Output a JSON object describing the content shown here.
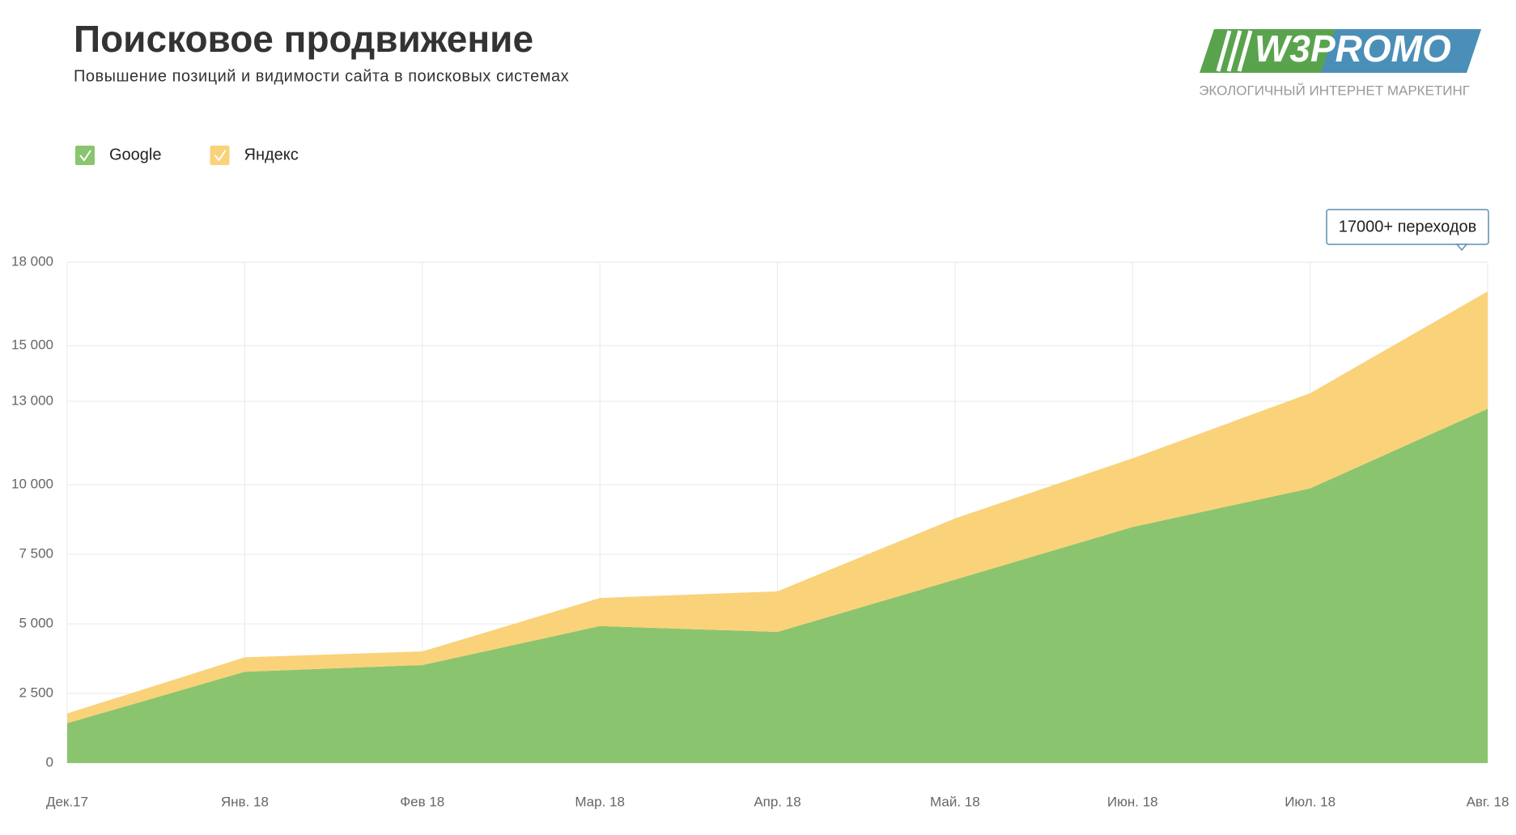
{
  "chart_data": {
    "type": "stacked-area",
    "title": "Поисковое продвижение",
    "subtitle": "Повышение позиций и видимости сайта в поисковых системах",
    "annotation": "17000+ переходов",
    "categories": [
      "Дек.17",
      "Янв. 18",
      "Фев 18",
      "Мар. 18",
      "Апр. 18",
      "Май. 18",
      "Июн. 18",
      "Июл. 18",
      "Авг. 18"
    ],
    "series": [
      {
        "name": "Google",
        "color": "#8bc46e",
        "values": [
          1430,
          3280,
          3520,
          4920,
          4710,
          6590,
          8480,
          9870,
          12730
        ]
      },
      {
        "name": "Яндекс",
        "color": "#fad27a",
        "values": [
          350,
          520,
          490,
          1010,
          1460,
          2200,
          2470,
          3420,
          4220
        ]
      }
    ],
    "ylim": [
      0,
      18000
    ],
    "yticks": [
      0,
      {
        "value": 2500,
        "label": "2 500"
      },
      {
        "value": 5000,
        "label": "5 000"
      },
      {
        "value": 7500,
        "label": "7 500"
      },
      {
        "value": 10000,
        "label": "10 000"
      },
      {
        "value": 13000,
        "label": "13 000"
      },
      {
        "value": 15000,
        "label": "15 000"
      },
      {
        "value": 18000,
        "label": "18 000"
      }
    ],
    "grid": true
  },
  "logo": {
    "name": "W3PROMO",
    "tagline": "ЭКОЛОГИЧНЫЙ ИНТЕРНЕТ МАРКЕТИНГ"
  }
}
